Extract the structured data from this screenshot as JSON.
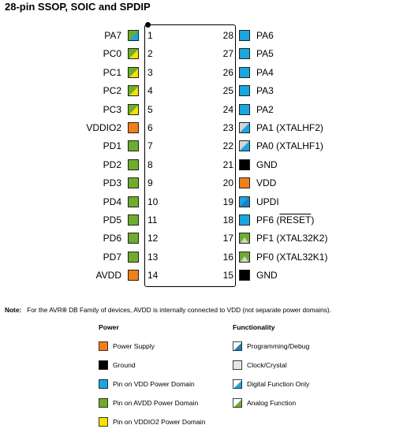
{
  "title": "28-pin SSOP, SOIC and SPDIP",
  "colors": {
    "power": "#f07f1a",
    "ground": "#000000",
    "vdd_domain": "#1aa6de",
    "avdd_domain": "#6fac2e",
    "vddio2_domain": "#f2e300",
    "clock": "#d4d4d4",
    "programming": "#1a7fc4"
  },
  "left_pins": [
    {
      "num": "1",
      "name": "PA7",
      "style": "digital-vdd"
    },
    {
      "num": "2",
      "name": "PC0",
      "style": "digital-vddio2"
    },
    {
      "num": "3",
      "name": "PC1",
      "style": "digital-vddio2"
    },
    {
      "num": "4",
      "name": "PC2",
      "style": "digital-vddio2"
    },
    {
      "num": "5",
      "name": "PC3",
      "style": "digital-vddio2"
    },
    {
      "num": "6",
      "name": "VDDIO2",
      "style": "power"
    },
    {
      "num": "7",
      "name": "PD1",
      "style": "analog"
    },
    {
      "num": "8",
      "name": "PD2",
      "style": "analog"
    },
    {
      "num": "9",
      "name": "PD3",
      "style": "analog"
    },
    {
      "num": "10",
      "name": "PD4",
      "style": "analog"
    },
    {
      "num": "11",
      "name": "PD5",
      "style": "analog"
    },
    {
      "num": "12",
      "name": "PD6",
      "style": "analog"
    },
    {
      "num": "13",
      "name": "PD7",
      "style": "analog"
    },
    {
      "num": "14",
      "name": "AVDD",
      "style": "power"
    }
  ],
  "right_pins": [
    {
      "num": "28",
      "name": "PA6",
      "style": "vdd"
    },
    {
      "num": "27",
      "name": "PA5",
      "style": "vdd"
    },
    {
      "num": "26",
      "name": "PA4",
      "style": "vdd"
    },
    {
      "num": "25",
      "name": "PA3",
      "style": "vdd"
    },
    {
      "num": "24",
      "name": "PA2",
      "style": "vdd"
    },
    {
      "num": "23",
      "name": "PA1 (XTALHF2)",
      "style": "clock-vdd"
    },
    {
      "num": "22",
      "name": "PA0 (XTALHF1)",
      "style": "clock-vdd"
    },
    {
      "num": "21",
      "name": "GND",
      "style": "ground"
    },
    {
      "num": "20",
      "name": "VDD",
      "style": "power"
    },
    {
      "num": "19",
      "name": "UPDI",
      "style": "prog-vdd"
    },
    {
      "num": "18",
      "name": "PF6 (RESET)",
      "name_prefix": "PF6 (",
      "name_overline": "RESET",
      "name_suffix": ")",
      "style": "vdd"
    },
    {
      "num": "17",
      "name": "PF1 (XTAL32K2)",
      "style": "clock-avdd"
    },
    {
      "num": "16",
      "name": "PF0 (XTAL32K1)",
      "style": "clock-avdd"
    },
    {
      "num": "15",
      "name": "GND",
      "style": "ground"
    }
  ],
  "note": {
    "label": "Note:",
    "text_before": "For the AVR",
    "registered": "®",
    "text_after": " DB Family of devices, AVDD is internally connected to VDD (not separate power domains)."
  },
  "legend": {
    "power_heading": "Power",
    "functionality_heading": "Functionality",
    "power_items": [
      {
        "label": "Power Supply",
        "style": "power"
      },
      {
        "label": "Ground",
        "style": "ground"
      },
      {
        "label": "Pin on VDD Power Domain",
        "style": "vdd"
      },
      {
        "label": "Pin on AVDD Power Domain",
        "style": "avdd"
      },
      {
        "label": "Pin on VDDIO2 Power Domain",
        "style": "vddio2"
      }
    ],
    "functionality_items": [
      {
        "label": "Programming/Debug",
        "style": "func-prog"
      },
      {
        "label": "Clock/Crystal",
        "style": "func-clock"
      },
      {
        "label": "Digital Function Only",
        "style": "func-digital"
      },
      {
        "label": "Analog Function",
        "style": "func-analog"
      }
    ]
  }
}
